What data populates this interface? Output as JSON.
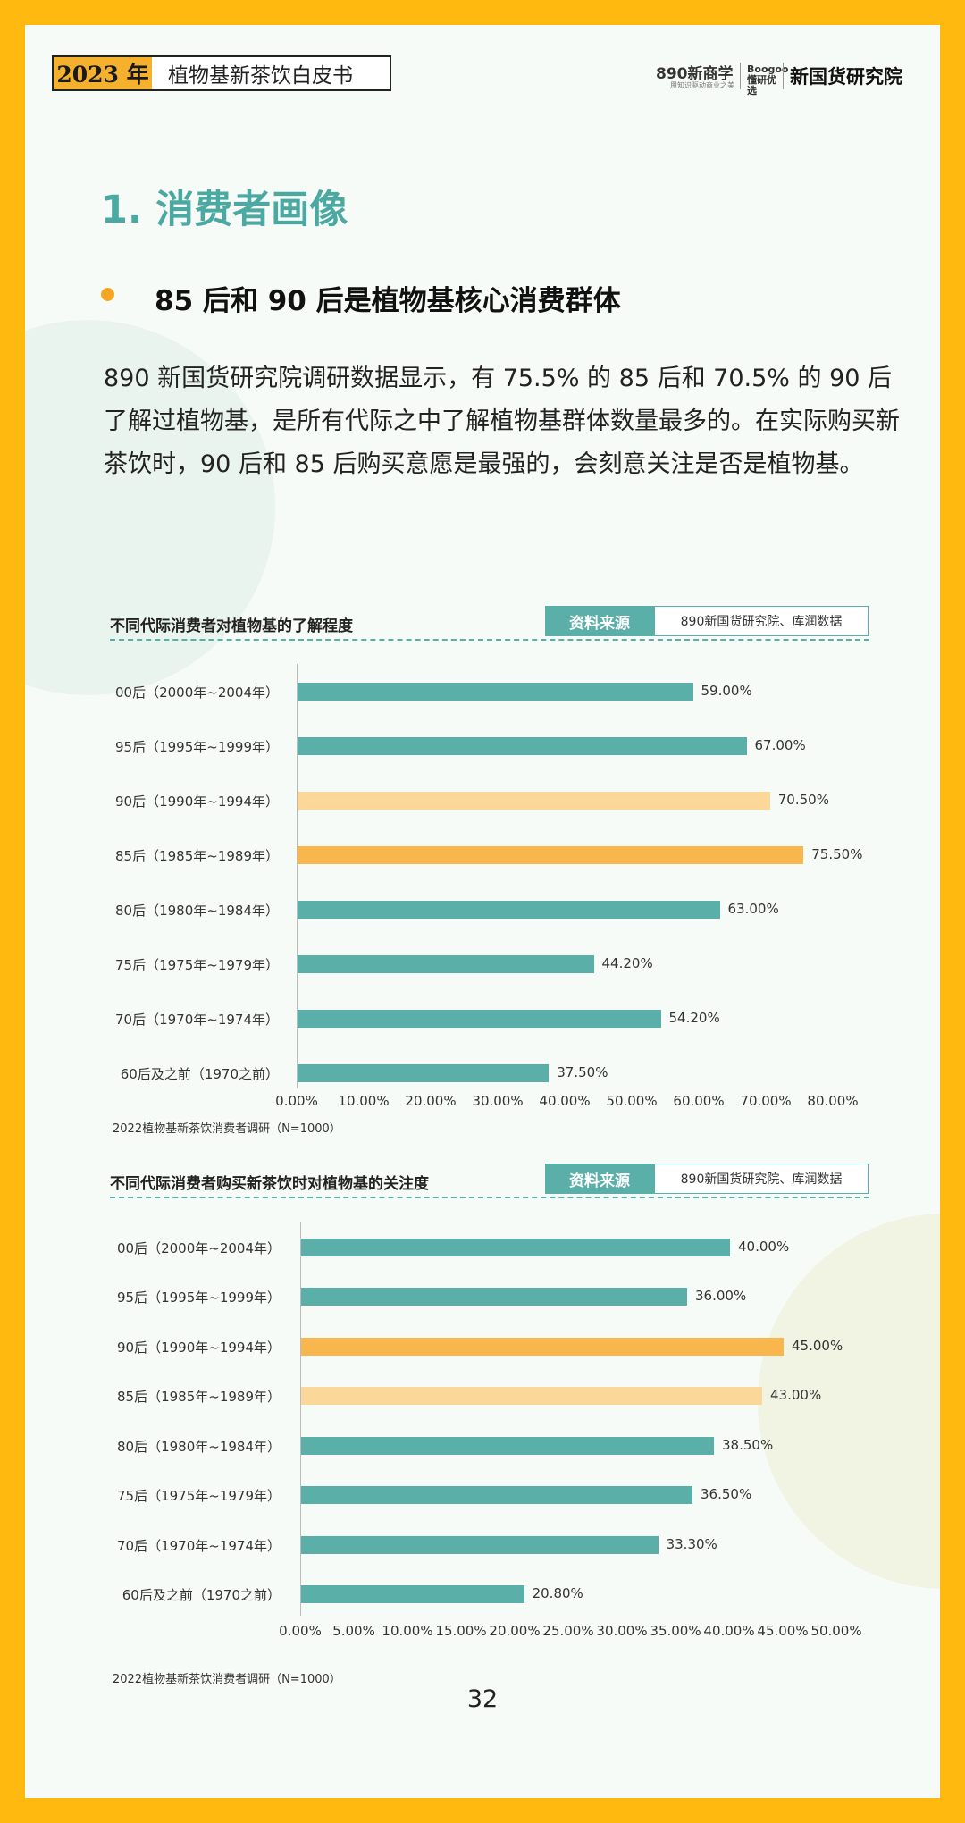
{
  "header": {
    "year": "2023 年",
    "title": "植物基新茶饮白皮书",
    "logo1": "890新商学",
    "logo1_sub": "用知识驱动商业之美",
    "logo2": "Boogoo 懂研优选",
    "logo3": "新国货研究院"
  },
  "section_title": "1. 消费者画像",
  "subheading": "85 后和 90 后是植物基核心消费群体",
  "paragraph": "890 新国货研究院调研数据显示，有 75.5% 的 85 后和 70.5% 的 90 后了解过植物基，是所有代际之中了解植物基群体数量最多的。在实际购买新茶饮时，90 后和 85 后购买意愿是最强的，会刻意关注是否是植物基。",
  "colors": {
    "teal": "#5AAFA8",
    "orange": "#F8B64C",
    "light_orange": "#FCD79A",
    "frame": "#FFB90F",
    "accent": "#4BA9A2"
  },
  "chart_data": [
    {
      "type": "bar",
      "orientation": "horizontal",
      "title": "不同代际消费者对植物基的了解程度",
      "source_label": "资料来源",
      "source_text": "890新国货研究院、库润数据",
      "categories": [
        "00后（2000年~2004年）",
        "95后（1995年~1999年）",
        "90后（1990年~1994年）",
        "85后（1985年~1989年）",
        "80后（1980年~1984年）",
        "75后（1975年~1979年）",
        "70后（1970年~1974年）",
        "60后及之前（1970之前）"
      ],
      "values": [
        59.0,
        67.0,
        70.5,
        75.5,
        63.0,
        44.2,
        54.2,
        37.5
      ],
      "value_labels": [
        "59.00%",
        "67.00%",
        "70.50%",
        "75.50%",
        "63.00%",
        "44.20%",
        "54.20%",
        "37.50%"
      ],
      "bar_colors": [
        "#5AAFA8",
        "#5AAFA8",
        "#FCD79A",
        "#F8B64C",
        "#5AAFA8",
        "#5AAFA8",
        "#5AAFA8",
        "#5AAFA8"
      ],
      "xlim": [
        0,
        80
      ],
      "tick_labels": [
        "0.00%",
        "10.00%",
        "20.00%",
        "30.00%",
        "40.00%",
        "50.00%",
        "60.00%",
        "70.00%",
        "80.00%"
      ],
      "note": "2022植物基新茶饮消费者调研（N=1000）"
    },
    {
      "type": "bar",
      "orientation": "horizontal",
      "title": "不同代际消费者购买新茶饮时对植物基的关注度",
      "source_label": "资料来源",
      "source_text": "890新国货研究院、库润数据",
      "categories": [
        "00后（2000年~2004年）",
        "95后（1995年~1999年）",
        "90后（1990年~1994年）",
        "85后（1985年~1989年）",
        "80后（1980年~1984年）",
        "75后（1975年~1979年）",
        "70后（1970年~1974年）",
        "60后及之前（1970之前）"
      ],
      "values": [
        40.0,
        36.0,
        45.0,
        43.0,
        38.5,
        36.5,
        33.3,
        20.8
      ],
      "value_labels": [
        "40.00%",
        "36.00%",
        "45.00%",
        "43.00%",
        "38.50%",
        "36.50%",
        "33.30%",
        "20.80%"
      ],
      "bar_colors": [
        "#5AAFA8",
        "#5AAFA8",
        "#F8B64C",
        "#FCD79A",
        "#5AAFA8",
        "#5AAFA8",
        "#5AAFA8",
        "#5AAFA8"
      ],
      "xlim": [
        0,
        50
      ],
      "tick_labels": [
        "0.00%",
        "5.00%",
        "10.00%",
        "15.00%",
        "20.00%",
        "25.00%",
        "30.00%",
        "35.00%",
        "40.00%",
        "45.00%",
        "50.00%"
      ],
      "note": "2022植物基新茶饮消费者调研（N=1000）"
    }
  ],
  "page_number": "32"
}
